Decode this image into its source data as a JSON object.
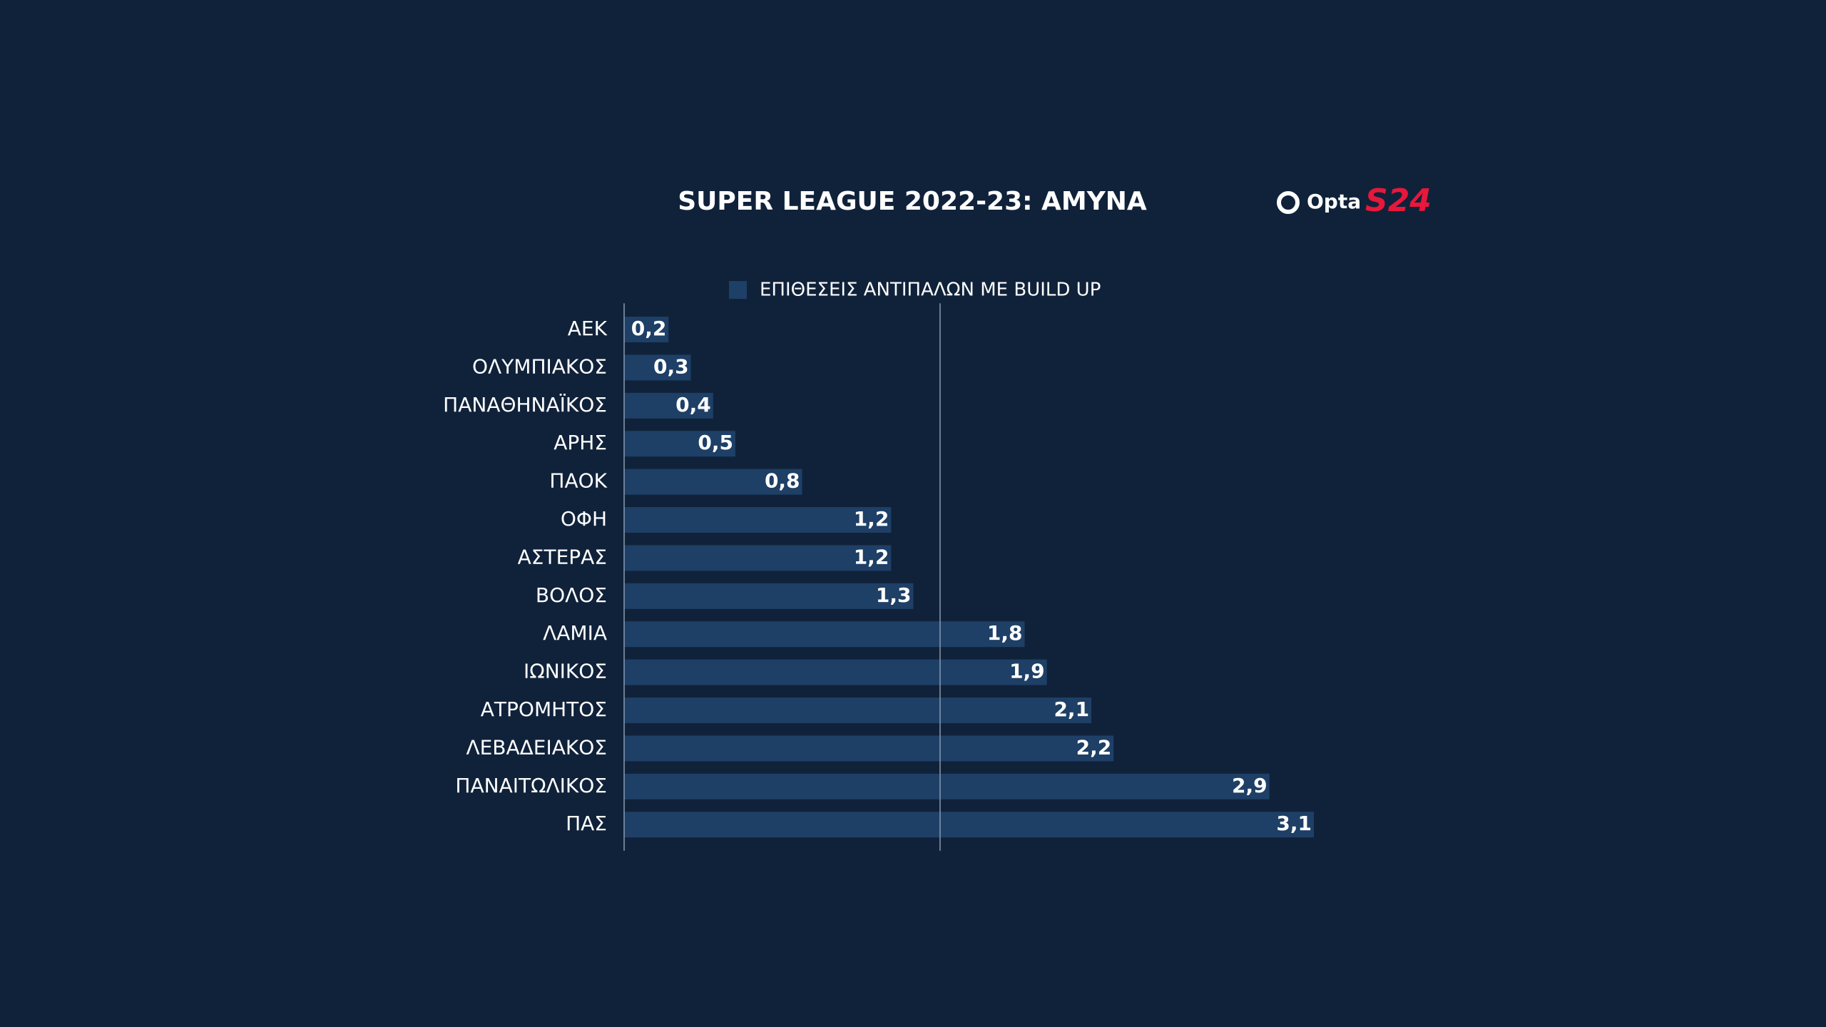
{
  "chart_data": {
    "type": "hbar",
    "title": "SUPER LEAGUE 2022-23: ΑΜΥΝΑ",
    "categories": [
      "ΑΕΚ",
      "ΟΛΥΜΠΙΑΚΟΣ",
      "ΠΑΝΑΘΗΝΑΪΚΟΣ",
      "ΑΡΗΣ",
      "ΠΑΟΚ",
      "ΟΦΗ",
      "ΑΣΤΕΡΑΣ",
      "ΒΟΛΟΣ",
      "ΛΑΜΙΑ",
      "ΙΩΝΙΚΟΣ",
      "ΑΤΡΟΜΗΤΟΣ",
      "ΛΕΒΑΔΕΙΑΚΟΣ",
      "ΠΑΝΑΙΤΩΛΙΚΟΣ",
      "ΠΑΣ"
    ],
    "series": [
      {
        "name": "ΕΠΙΘΕΣΕΙΣ ΑΝΤΙΠΑΛΩΝ ΜΕ BUILD UP",
        "color": "#1e3f66",
        "values": [
          0.2,
          0.3,
          0.4,
          0.5,
          0.8,
          1.2,
          1.2,
          1.3,
          1.8,
          1.9,
          2.1,
          2.2,
          2.9,
          3.1
        ],
        "value_labels": [
          "0,2",
          "0,3",
          "0,4",
          "0,5",
          "0,8",
          "1,2",
          "1,2",
          "1,3",
          "1,8",
          "1,9",
          "2,1",
          "2,2",
          "2,9",
          "3,1"
        ]
      }
    ],
    "xlim": [
      0,
      3.1
    ],
    "average_line": 1.42
  },
  "branding": {
    "opta": "Opta",
    "s24": "S24"
  }
}
